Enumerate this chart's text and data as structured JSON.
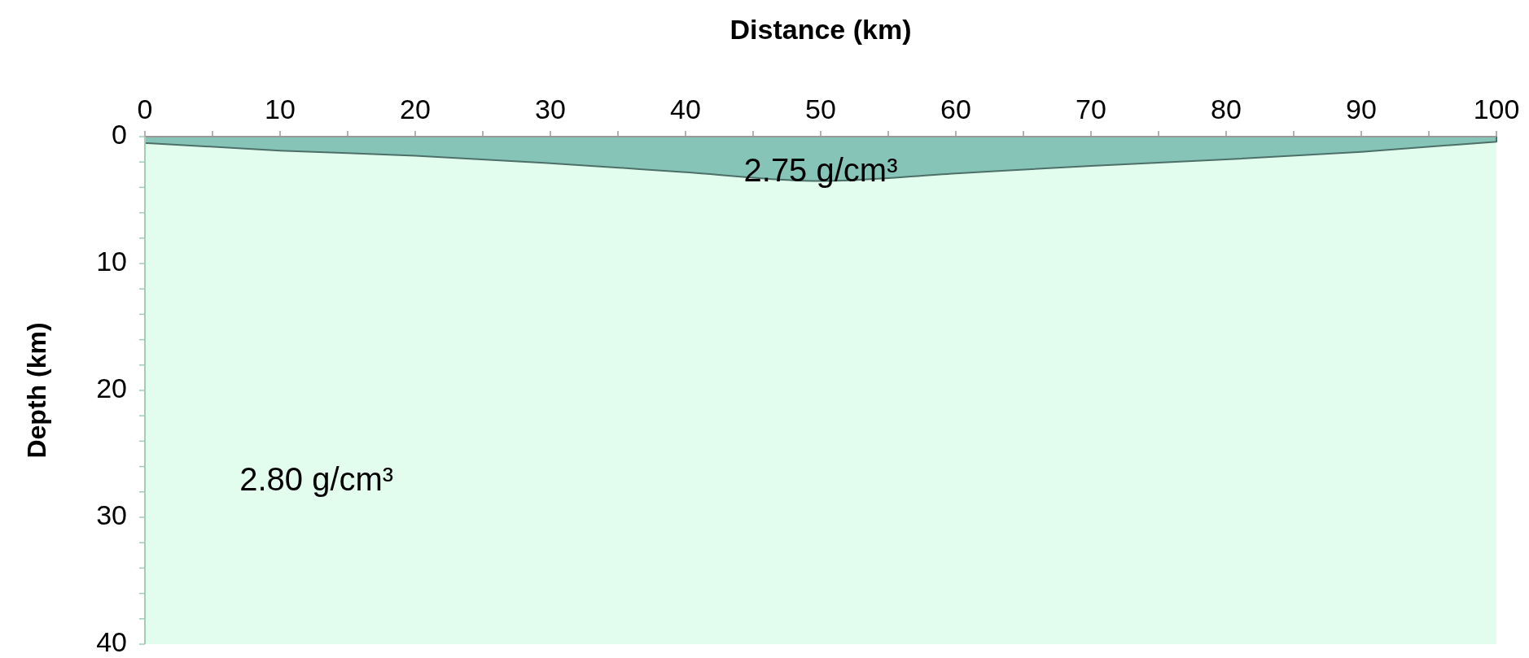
{
  "chart_data": {
    "type": "area",
    "xlabel": "Distance (km)",
    "ylabel": "Depth (km)",
    "x": [
      0,
      10,
      20,
      30,
      40,
      50,
      60,
      70,
      80,
      90,
      100
    ],
    "series": [
      {
        "color": "#87c4b8",
        "values": [
          0.5,
          1.1,
          1.5,
          2.1,
          2.8,
          3.5,
          2.9,
          2.3,
          1.8,
          1.2,
          0.4
        ]
      }
    ],
    "xlim": [
      0,
      100
    ],
    "ylim": [
      40,
      0
    ],
    "xticks": [
      0,
      {
        "value": 5,
        "label": null
      },
      10,
      {
        "value": 15,
        "label": null
      },
      20,
      {
        "value": 25,
        "label": null
      },
      30,
      {
        "value": 35,
        "label": null
      },
      40,
      {
        "value": 45,
        "label": null
      },
      50,
      {
        "value": 55,
        "label": null
      },
      60,
      {
        "value": 65,
        "label": null
      },
      70,
      {
        "value": 75,
        "label": null
      },
      80,
      {
        "value": 85,
        "label": null
      },
      90,
      {
        "value": 95,
        "label": null
      },
      100
    ],
    "yticks": [
      0,
      {
        "value": 2,
        "label": null
      },
      {
        "value": 4,
        "label": null
      },
      {
        "value": 6,
        "label": null
      },
      {
        "value": 8,
        "label": null
      },
      10,
      {
        "value": 12,
        "label": null
      },
      {
        "value": 14,
        "label": null
      },
      {
        "value": 16,
        "label": null
      },
      {
        "value": 18,
        "label": null
      },
      20,
      {
        "value": 22,
        "label": null
      },
      {
        "value": 24,
        "label": null
      },
      {
        "value": 26,
        "label": null
      },
      {
        "value": 28,
        "label": null
      },
      30,
      {
        "value": 32,
        "label": null
      },
      {
        "value": 34,
        "label": null
      },
      {
        "value": 36,
        "label": null
      },
      {
        "value": 38,
        "label": null
      },
      40
    ],
    "annotations": [
      "2.75 g/cm³",
      "2.80 g/cm³"
    ]
  }
}
